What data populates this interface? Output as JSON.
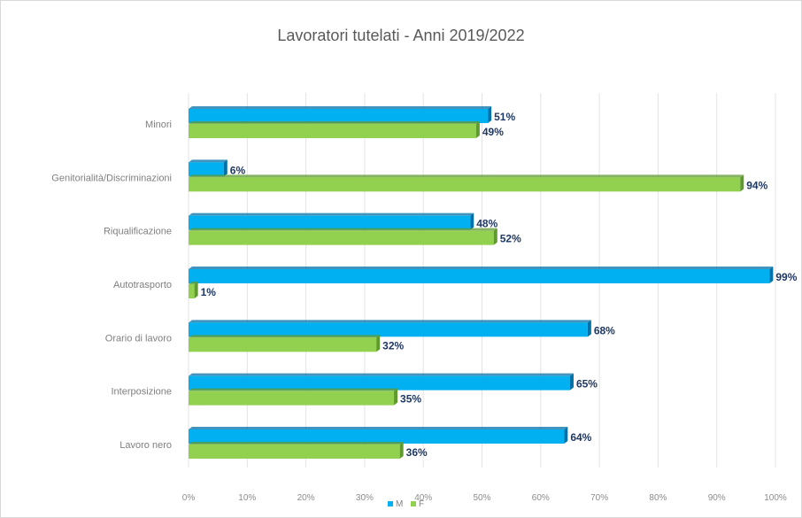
{
  "chart_data": {
    "type": "bar",
    "orientation": "horizontal",
    "title": "Lavoratori tutelati - Anni 2019/2022",
    "categories": [
      "Minori",
      "Genitorialità/Discriminazioni",
      "Riqualificazione",
      "Autotrasporto",
      "Orario di lavoro",
      "Interposizione",
      "Lavoro nero"
    ],
    "series": [
      {
        "name": "M",
        "color": "#00b0f0",
        "values": [
          51,
          6,
          48,
          99,
          68,
          65,
          64
        ],
        "labels": [
          "51%",
          "6%",
          "48%",
          "99%",
          "68%",
          "65%",
          "64%"
        ]
      },
      {
        "name": "F",
        "color": "#92d050",
        "values": [
          49,
          94,
          52,
          1,
          32,
          35,
          36
        ],
        "labels": [
          "49%",
          "94%",
          "52%",
          "1%",
          "32%",
          "35%",
          "36%"
        ]
      }
    ],
    "x_ticks": [
      "0%",
      "10%",
      "20%",
      "30%",
      "40%",
      "50%",
      "60%",
      "70%",
      "80%",
      "90%",
      "100%"
    ],
    "xlim": [
      0,
      100
    ],
    "grid": true,
    "legend_position": "bottom"
  }
}
